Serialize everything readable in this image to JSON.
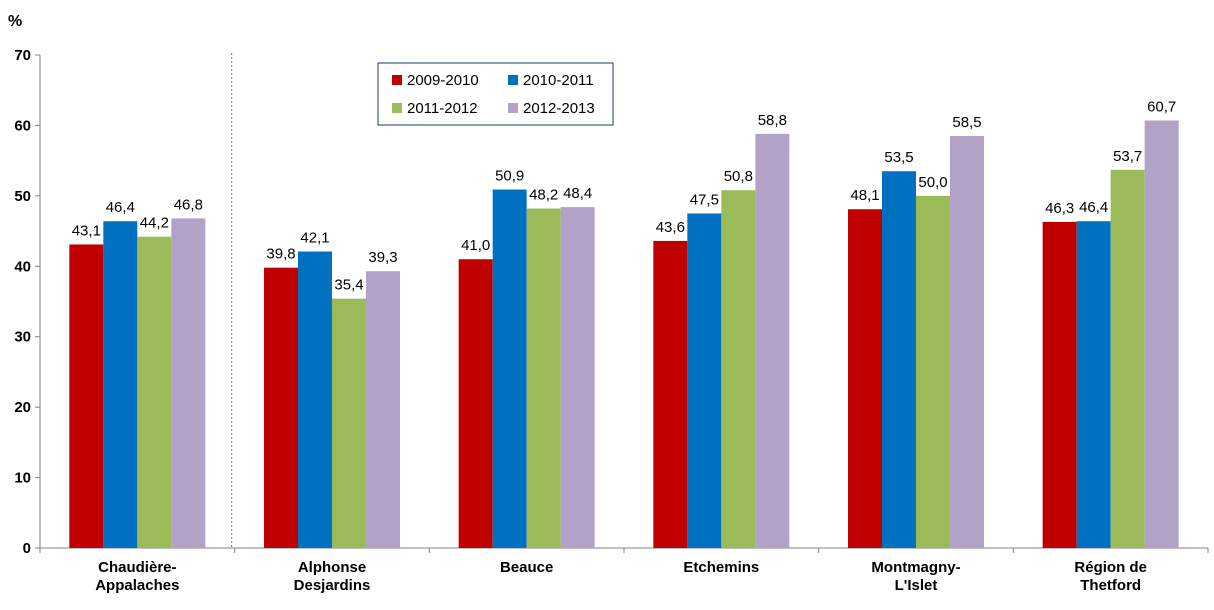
{
  "chart_data": {
    "type": "bar",
    "y_unit_label": "%",
    "categories": [
      [
        "Chaudière-",
        "Appalaches"
      ],
      [
        "Alphonse",
        "Desjardins"
      ],
      [
        "Beauce"
      ],
      [
        "Etchemins"
      ],
      [
        "Montmagny-",
        "L'Islet"
      ],
      [
        "Région de",
        "Thetford"
      ]
    ],
    "series": [
      {
        "name": "2009-2010",
        "color": "#C00000",
        "values": [
          43.1,
          39.8,
          41.0,
          43.6,
          48.1,
          46.3
        ],
        "labels": [
          "43,1",
          "39,8",
          "41,0",
          "43,6",
          "48,1",
          "46,3"
        ]
      },
      {
        "name": "2010-2011",
        "color": "#0070C0",
        "values": [
          46.4,
          42.1,
          50.9,
          47.5,
          53.5,
          46.4
        ],
        "labels": [
          "46,4",
          "42,1",
          "50,9",
          "47,5",
          "53,5",
          "46,4"
        ]
      },
      {
        "name": "2011-2012",
        "color": "#9BBB59",
        "values": [
          44.2,
          35.4,
          48.2,
          50.8,
          50.0,
          53.7
        ],
        "labels": [
          "44,2",
          "35,4",
          "48,2",
          "50,8",
          "50,0",
          "53,7"
        ]
      },
      {
        "name": "2012-2013",
        "color": "#B3A2C7",
        "values": [
          46.8,
          39.3,
          48.4,
          58.8,
          58.5,
          60.7
        ],
        "labels": [
          "46,8",
          "39,3",
          "48,4",
          "58,8",
          "58,5",
          "60,7"
        ]
      }
    ],
    "yticks": [
      0,
      10,
      20,
      30,
      40,
      50,
      60,
      70
    ],
    "ylim": [
      0,
      70
    ],
    "legend_position": "top-center",
    "separator_after_category": 0,
    "grid": false
  }
}
